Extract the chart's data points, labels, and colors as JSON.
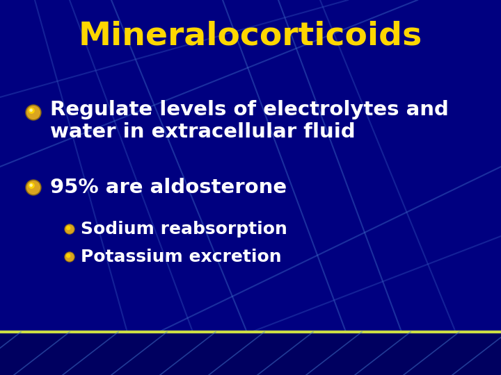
{
  "title": "Mineralocorticoids",
  "title_color": "#FFD700",
  "title_fontsize": 34,
  "bg_color": "#000080",
  "bullet1_line1": "Regulate levels of electrolytes and",
  "bullet1_line2": "water in extracellular fluid",
  "bullet2_text": "95% are aldosterone",
  "sub_bullet1": "Sodium reabsorption",
  "sub_bullet2": "Potassium excretion",
  "bullet_color": "#FFFFFF",
  "bullet_fontsize": 21,
  "sub_bullet_fontsize": 18,
  "bullet_marker_color": "#DAA520",
  "sub_marker_color": "#FFD700",
  "line_color1": "#3355BB",
  "line_color2": "#4477CC",
  "bottom_stripe_color": "#000060",
  "bottom_line_color": "#CCDD44"
}
